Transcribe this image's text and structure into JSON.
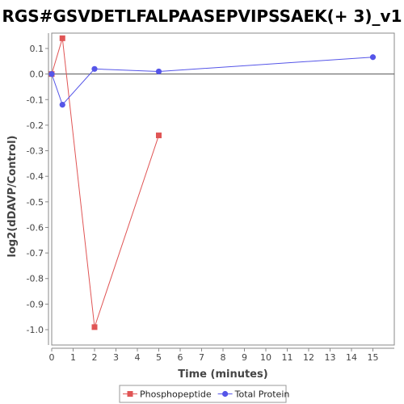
{
  "chart_data": {
    "type": "line",
    "title": "RGS#GSVDETLFALPAASEPVIPSSAEK(+ 3)_v1",
    "xlabel": "Time (minutes)",
    "ylabel": "log2(dDAVP/Control)",
    "xlim": [
      0,
      16
    ],
    "ylim": [
      -1.06,
      0.16
    ],
    "x_ticks": [
      0,
      1,
      2,
      3,
      4,
      5,
      6,
      7,
      8,
      9,
      10,
      11,
      12,
      13,
      14,
      15
    ],
    "y_ticks": [
      0.1,
      0.0,
      -0.1,
      -0.2,
      -0.3,
      -0.4,
      -0.5,
      -0.6,
      -0.7,
      -0.8,
      -0.9,
      -1.0
    ],
    "x_tick_labels": [
      "0",
      "1",
      "2",
      "3",
      "4",
      "5",
      "6",
      "7",
      "8",
      "9",
      "10",
      "11",
      "12",
      "13",
      "14",
      "15"
    ],
    "y_tick_labels": [
      "0.1",
      "0.0",
      "-0.1",
      "-0.2",
      "-0.3",
      "-0.4",
      "-0.5",
      "-0.6",
      "-0.7",
      "-0.8",
      "-0.9",
      "-1.0"
    ],
    "zero_line": true,
    "grid": false,
    "legend_position": "bottom",
    "series": [
      {
        "name": "Phosphopeptide",
        "color": "#e05555",
        "marker": "square",
        "points": [
          [
            0,
            0.0
          ],
          [
            0.5,
            0.14
          ],
          [
            2,
            -0.99
          ],
          [
            5,
            -0.24
          ]
        ]
      },
      {
        "name": "Total Protein",
        "color": "#5555e8",
        "marker": "circle",
        "points": [
          [
            0,
            0.0
          ],
          [
            0.5,
            -0.12
          ],
          [
            2,
            0.02
          ],
          [
            5,
            0.01
          ],
          [
            15,
            0.066
          ]
        ]
      }
    ]
  }
}
